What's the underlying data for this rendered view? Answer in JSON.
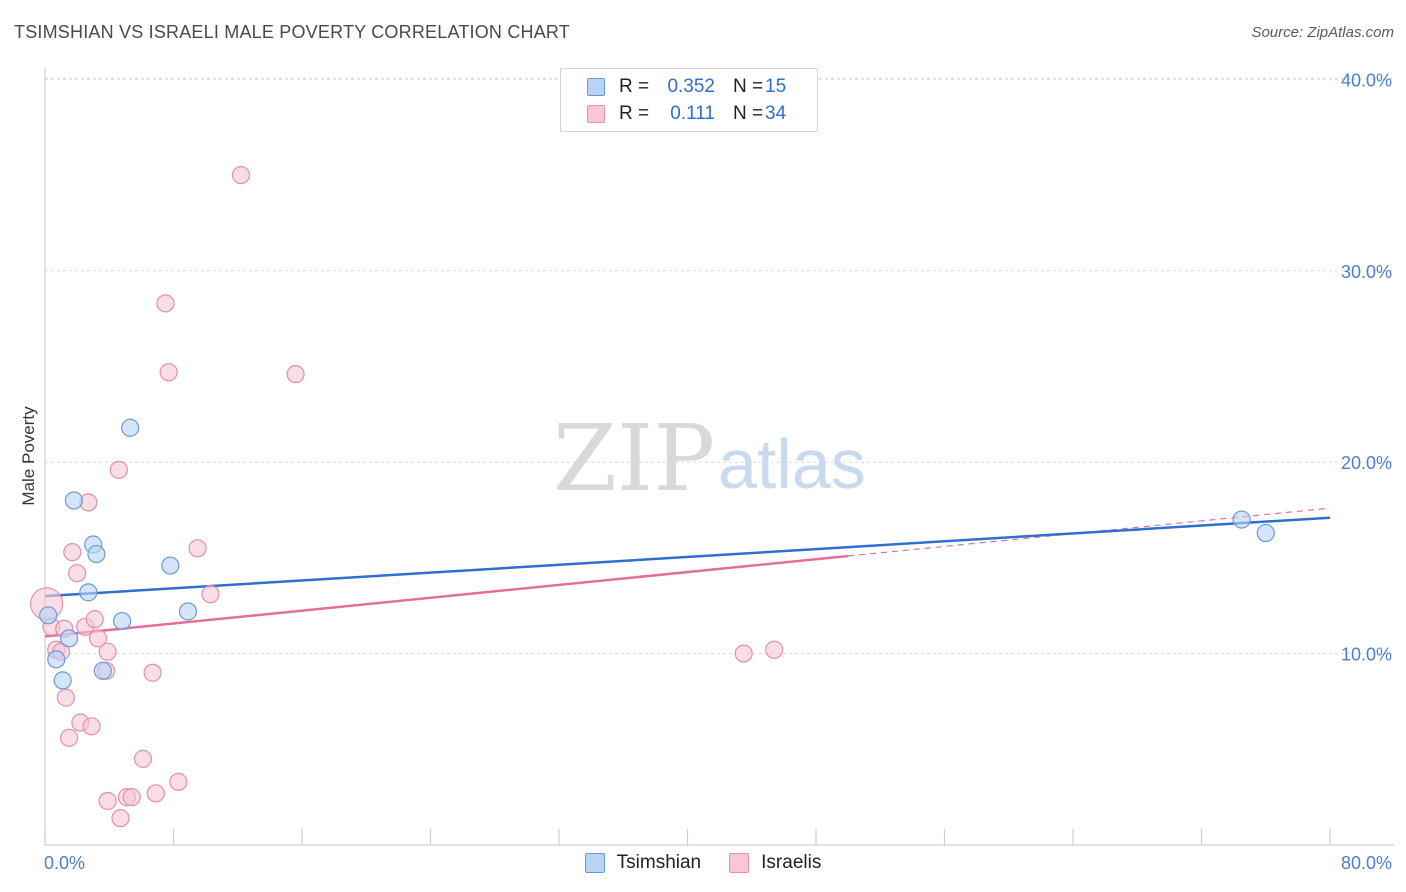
{
  "header": {
    "title": "TSIMSHIAN VS ISRAELI MALE POVERTY CORRELATION CHART",
    "source": "Source: ZipAtlas.com"
  },
  "watermark": {
    "part1": "ZIP",
    "part2": "atlas"
  },
  "legend": {
    "rows": [
      {
        "r_label": "R =",
        "r_value": "0.352",
        "n_label": "N =",
        "n_value": "15"
      },
      {
        "r_label": "R =",
        "r_value": "0.111",
        "n_label": "N =",
        "n_value": "34"
      }
    ]
  },
  "bottom_legend": {
    "items": [
      "Tsimshian",
      "Israelis"
    ]
  },
  "colors": {
    "tsimshian_fill": "#b8d3f5",
    "tsimshian_stroke": "#6a9bd8",
    "tsimshian_line": "#2f6fcf",
    "israelis_fill": "#f8c6d5",
    "israelis_stroke": "#e48fab",
    "israelis_line": "#e0709a"
  },
  "chart_data": {
    "type": "scatter",
    "title": "TSIMSHIAN VS ISRAELI MALE POVERTY CORRELATION CHART",
    "xlabel": "",
    "ylabel": "Male Poverty",
    "xlim": [
      0,
      80
    ],
    "ylim": [
      0,
      41
    ],
    "x_tick_labels": [
      "0.0%",
      "80.0%"
    ],
    "y_ticks": [
      10,
      20,
      30,
      40
    ],
    "y_tick_labels": [
      "10.0%",
      "20.0%",
      "30.0%",
      "40.0%"
    ],
    "grid": true,
    "series": [
      {
        "name": "Tsimshian",
        "r": 0.352,
        "n": 15,
        "points": [
          [
            0.2,
            12.0
          ],
          [
            0.7,
            9.7
          ],
          [
            1.1,
            8.6
          ],
          [
            1.5,
            10.8
          ],
          [
            1.8,
            18.0
          ],
          [
            2.7,
            13.2
          ],
          [
            3.0,
            15.7
          ],
          [
            3.2,
            15.2
          ],
          [
            3.6,
            9.1
          ],
          [
            4.8,
            11.7
          ],
          [
            5.3,
            21.8
          ],
          [
            7.8,
            14.6
          ],
          [
            8.9,
            12.2
          ],
          [
            74.5,
            17.0
          ],
          [
            76.0,
            16.3
          ]
        ],
        "trend": {
          "x": [
            0,
            80
          ],
          "y": [
            13.0,
            17.1
          ]
        }
      },
      {
        "name": "Israelis",
        "r": 0.111,
        "n": 34,
        "points": [
          [
            0.1,
            12.6
          ],
          [
            0.4,
            11.4
          ],
          [
            0.7,
            10.2
          ],
          [
            1.0,
            10.1
          ],
          [
            1.2,
            11.3
          ],
          [
            1.3,
            7.7
          ],
          [
            1.5,
            5.6
          ],
          [
            1.7,
            15.3
          ],
          [
            2.0,
            14.2
          ],
          [
            2.2,
            6.4
          ],
          [
            2.5,
            11.4
          ],
          [
            2.7,
            17.9
          ],
          [
            2.9,
            6.2
          ],
          [
            3.1,
            11.8
          ],
          [
            3.3,
            10.8
          ],
          [
            3.8,
            9.1
          ],
          [
            3.9,
            10.1
          ],
          [
            3.9,
            2.3
          ],
          [
            4.6,
            19.6
          ],
          [
            4.7,
            1.4
          ],
          [
            5.1,
            2.5
          ],
          [
            5.4,
            2.5
          ],
          [
            6.1,
            4.5
          ],
          [
            6.7,
            9.0
          ],
          [
            6.9,
            2.7
          ],
          [
            7.5,
            28.3
          ],
          [
            7.7,
            24.7
          ],
          [
            8.3,
            3.3
          ],
          [
            9.5,
            15.5
          ],
          [
            10.3,
            13.1
          ],
          [
            12.2,
            35.0
          ],
          [
            15.6,
            24.6
          ],
          [
            43.5,
            10.0
          ],
          [
            45.4,
            10.2
          ]
        ],
        "trend": {
          "x": [
            0,
            50
          ],
          "y": [
            10.9,
            15.1
          ]
        },
        "trend_extension": {
          "x": [
            50,
            80
          ],
          "y": [
            15.1,
            17.6
          ]
        }
      }
    ]
  }
}
